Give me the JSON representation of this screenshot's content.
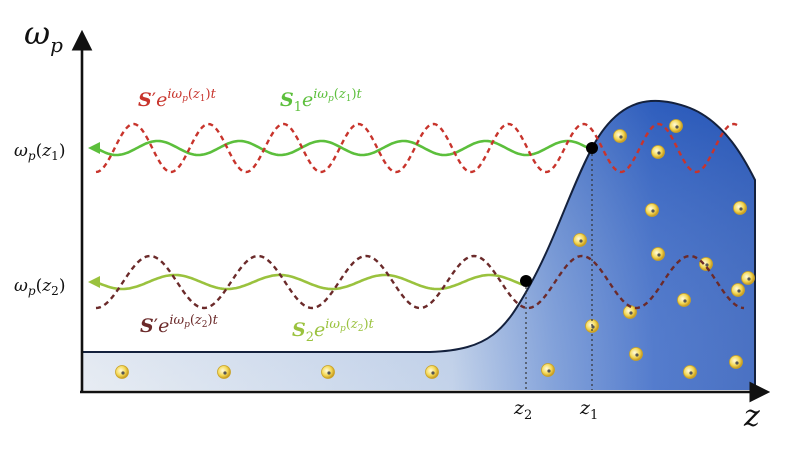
{
  "axes": {
    "y_label_base": "ω",
    "y_label_sub": "p",
    "x_label": "z"
  },
  "y_ticks": {
    "upper": "ω_p(z_1)",
    "lower": "ω_p(z_2)"
  },
  "x_ticks": {
    "z2": "z_2",
    "z1": "z_1"
  },
  "wave_labels": {
    "upper_reflected": "S′e^{iω_p(z_1)t}",
    "upper_signal": "S_1 e^{iω_p(z_1)t}",
    "lower_reflected": "S′e^{iω_p(z_2)t}",
    "lower_signal": "S_2 e^{iω_p(z_2)t}"
  },
  "colors": {
    "reflected_upper": "#c8342c",
    "reflected_lower": "#6b2a2a",
    "signal_upper": "#5cbf3c",
    "signal_lower": "#9ac23e",
    "plasma_dark": "#2757b8",
    "plasma_light": "#dfe6ef",
    "particle": "#f0d24e"
  }
}
